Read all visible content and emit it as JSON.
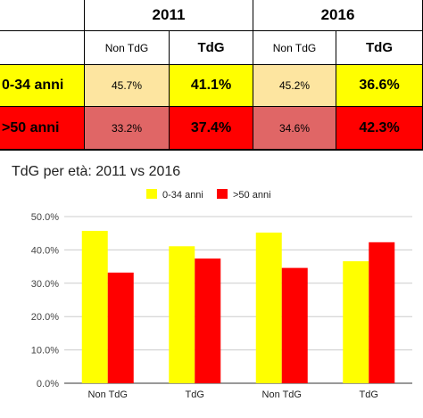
{
  "table": {
    "years": [
      "2011",
      "2016"
    ],
    "subheaders": [
      "Non TdG",
      "TdG",
      "Non TdG",
      "TdG"
    ],
    "rows": [
      {
        "label": "0-34 anni",
        "values": [
          "45.7%",
          "41.1%",
          "45.2%",
          "36.6%"
        ]
      },
      {
        "label": ">50 anni",
        "values": [
          "33.2%",
          "37.4%",
          "34.6%",
          "42.3%"
        ]
      }
    ],
    "colors": {
      "yellow": "#ffff00",
      "light_yellow": "#fde5a0",
      "red": "#ff0000",
      "light_red": "#e06666"
    }
  },
  "chart_data": {
    "type": "bar",
    "title": "TdG per età: 2011 vs 2016",
    "categories": [
      "Non TdG",
      "TdG",
      "Non TdG",
      "TdG"
    ],
    "series": [
      {
        "name": "0-34 anni",
        "color": "#ffff00",
        "values": [
          45.7,
          41.1,
          45.2,
          36.6
        ]
      },
      {
        "name": ">50 anni",
        "color": "#ff0000",
        "values": [
          33.2,
          37.4,
          34.6,
          42.3
        ]
      }
    ],
    "ylim": [
      0,
      50
    ],
    "yticks": [
      "0.0%",
      "10.0%",
      "20.0%",
      "30.0%",
      "40.0%",
      "50.0%"
    ],
    "grid": true,
    "legend": "top"
  }
}
